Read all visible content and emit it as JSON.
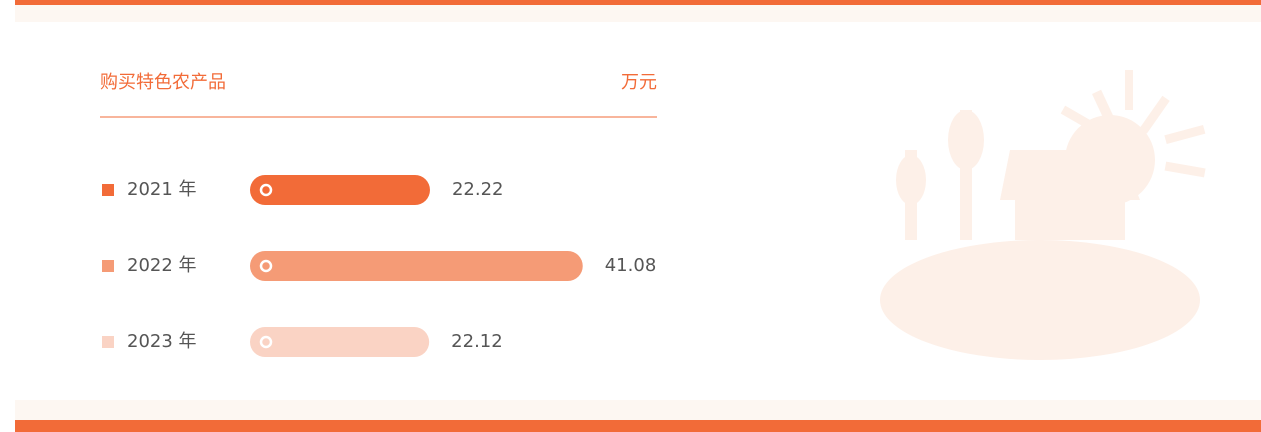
{
  "chart_data": {
    "type": "bar",
    "title": "购买特色农产品",
    "unit": "万元",
    "categories": [
      "2021 年",
      "2022 年",
      "2023 年"
    ],
    "values": [
      22.22,
      41.08,
      22.12
    ],
    "colors": [
      "#f26b38",
      "#f59b76",
      "#fad3c4"
    ]
  }
}
